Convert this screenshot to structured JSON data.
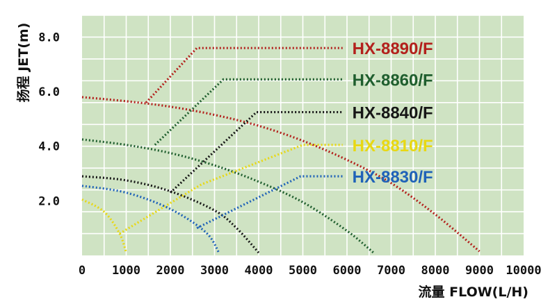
{
  "chart_data": {
    "type": "line",
    "xlabel": "流量 FLOW(L/H)",
    "ylabel": "扬程 JET(m)",
    "xlim": [
      0,
      10000
    ],
    "ylim": [
      0,
      8.8
    ],
    "x_ticks": [
      "0",
      "1000",
      "2000",
      "3000",
      "4000",
      "5000",
      "6000",
      "7000",
      "8000",
      "9000",
      "10000"
    ],
    "y_ticks": [
      "2.0",
      "4.0",
      "6.0",
      "8.0"
    ],
    "grid": true,
    "background": "#cfe3c3",
    "series": [
      {
        "name": "HX-8890/F",
        "color": "#b3201c",
        "x": [
          0,
          1000,
          2000,
          3000,
          4000,
          5000,
          6000,
          7000,
          8000,
          9000
        ],
        "y": [
          5.8,
          5.65,
          5.45,
          5.15,
          4.75,
          4.2,
          3.5,
          2.65,
          1.5,
          0.15
        ],
        "leader": [
          [
            1450,
            5.6
          ],
          [
            2600,
            7.6
          ],
          [
            5900,
            7.6
          ]
        ]
      },
      {
        "name": "HX-8860/F",
        "color": "#1f5e2e",
        "x": [
          0,
          1000,
          2000,
          3000,
          4000,
          5000,
          6000,
          6600
        ],
        "y": [
          4.25,
          4.05,
          3.75,
          3.3,
          2.7,
          1.95,
          0.9,
          0.1
        ],
        "leader": [
          [
            1650,
            4.05
          ],
          [
            3200,
            6.45
          ],
          [
            5900,
            6.45
          ]
        ]
      },
      {
        "name": "HX-8840/F",
        "color": "#161616",
        "x": [
          0,
          1000,
          2000,
          3000,
          3500,
          4000
        ],
        "y": [
          2.9,
          2.75,
          2.35,
          1.65,
          1.0,
          0.1
        ],
        "leader": [
          [
            2000,
            2.3
          ],
          [
            3950,
            5.25
          ],
          [
            5900,
            5.25
          ]
        ]
      },
      {
        "name": "HX-8810/F",
        "color": "#e8d813",
        "x": [
          0,
          500,
          850,
          1000
        ],
        "y": [
          2.05,
          1.6,
          0.8,
          0.1
        ],
        "leader": [
          [
            850,
            0.8
          ],
          [
            2700,
            2.6
          ],
          [
            5000,
            4.05
          ],
          [
            5900,
            4.05
          ]
        ]
      },
      {
        "name": "HX-8830/F",
        "color": "#1f62b8",
        "x": [
          0,
          1000,
          2000,
          2800,
          3100
        ],
        "y": [
          2.55,
          2.3,
          1.7,
          0.85,
          0.1
        ],
        "leader": [
          [
            2600,
            1.0
          ],
          [
            4950,
            2.9
          ],
          [
            5900,
            2.9
          ]
        ]
      }
    ]
  }
}
